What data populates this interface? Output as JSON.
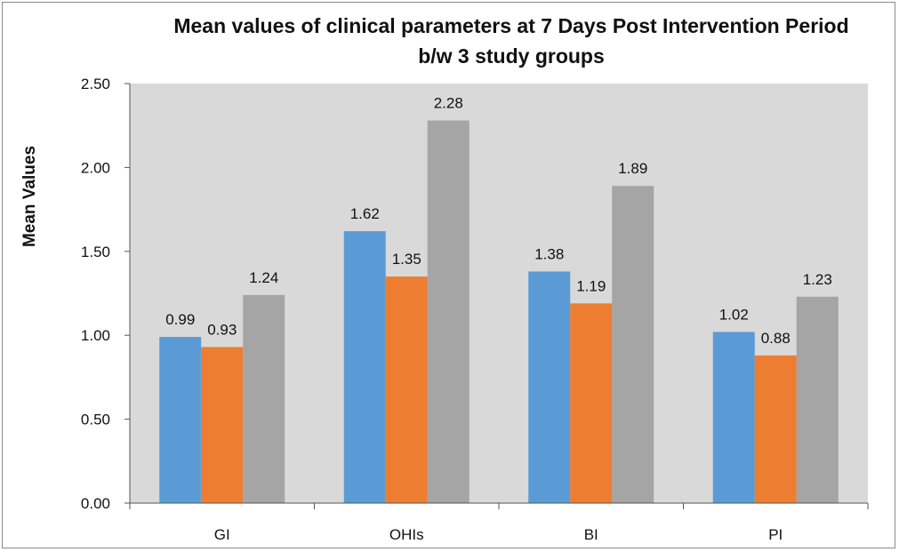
{
  "chart_data": {
    "type": "bar",
    "title_lines": [
      "Mean values of clinical parameters at 7 Days Post Intervention Period",
      "b/w 3 study groups"
    ],
    "xlabel": "",
    "ylabel": "Mean Values",
    "categories": [
      "GI",
      "OHIs",
      "BI",
      "PI"
    ],
    "series": [
      {
        "values": [
          0.99,
          1.62,
          1.38,
          1.02
        ],
        "labels": [
          "0.99",
          "1.62",
          "1.38",
          "1.02"
        ],
        "color": "#5b9bd5"
      },
      {
        "values": [
          0.93,
          1.35,
          1.19,
          0.88
        ],
        "labels": [
          "0.93",
          "1.35",
          "1.19",
          "0.88"
        ],
        "color": "#ed7d31"
      },
      {
        "values": [
          1.24,
          2.28,
          1.89,
          1.23
        ],
        "labels": [
          "1.24",
          "2.28",
          "1.89",
          "1.23"
        ],
        "color": "#a5a5a5"
      }
    ],
    "ylim": [
      0,
      2.5
    ],
    "yticks": [
      "0.00",
      "0.50",
      "1.00",
      "1.50",
      "2.00",
      "2.50"
    ],
    "grid": false,
    "legend": "none",
    "plot_background": "#d9d9d9"
  }
}
